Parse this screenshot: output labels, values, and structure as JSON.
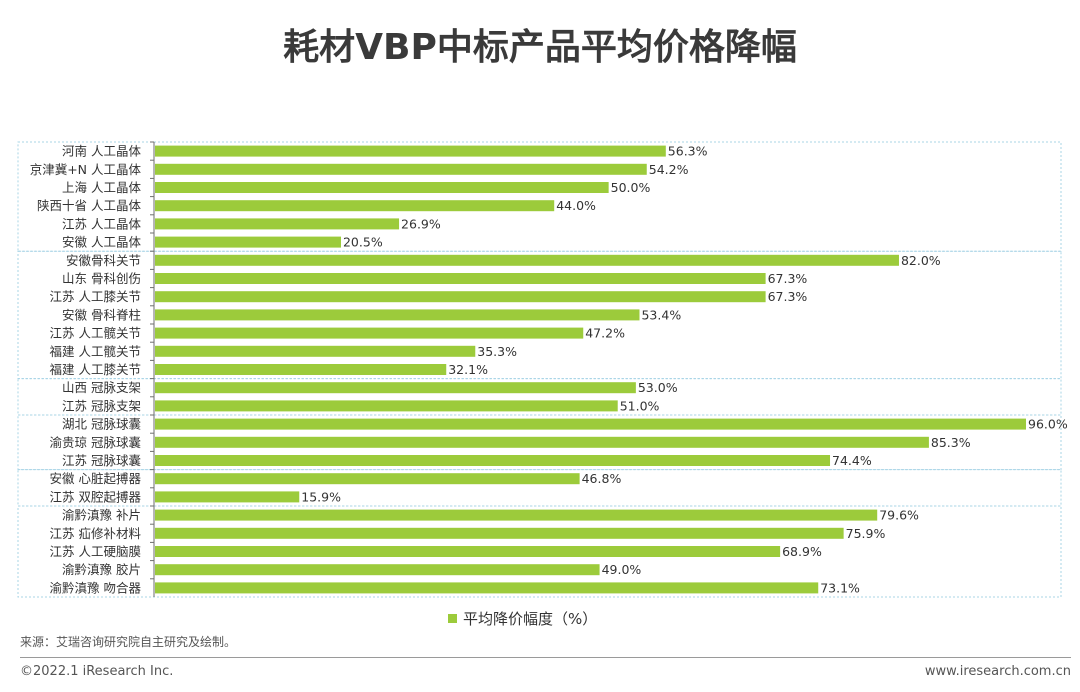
{
  "title": "耗材VBP中标产品平均价格降幅",
  "legend_label": "平均降价幅度（%）",
  "source": "来源：艾瑞咨询研究院自主研究及绘制。",
  "copyright": "©2022.1 iResearch Inc.",
  "website": "www.iresearch.com.cn",
  "colors": {
    "bar": "#9ccb3b",
    "group_border": "#a8d4e6",
    "axis": "#6e6e6e"
  },
  "chart_data": {
    "type": "bar",
    "orientation": "horizontal",
    "categories": [
      "河南 人工晶体",
      "京津冀+N 人工晶体",
      "上海 人工晶体",
      "陕西十省 人工晶体",
      "江苏 人工晶体",
      "安徽 人工晶体",
      "安徽骨科关节",
      "山东 骨科创伤",
      "江苏 人工膝关节",
      "安徽 骨科脊柱",
      "江苏 人工髋关节",
      "福建 人工髋关节",
      "福建 人工膝关节",
      "山西 冠脉支架",
      "江苏 冠脉支架",
      "湖北 冠脉球囊",
      "渝贵琼 冠脉球囊",
      "江苏 冠脉球囊",
      "安徽 心脏起搏器",
      "江苏 双腔起搏器",
      "渝黔滇豫 补片",
      "江苏 疝修补材料",
      "江苏 人工硬脑膜",
      "渝黔滇豫 胶片",
      "渝黔滇豫 吻合器"
    ],
    "values": [
      56.3,
      54.2,
      50.0,
      44.0,
      26.9,
      20.5,
      82.0,
      67.3,
      67.3,
      53.4,
      47.2,
      35.3,
      32.1,
      53.0,
      51.0,
      96.0,
      85.3,
      74.4,
      46.8,
      15.9,
      79.6,
      75.9,
      68.9,
      49.0,
      73.1
    ],
    "value_labels": [
      "56.3%",
      "54.2%",
      "50.0%",
      "44.0%",
      "26.9%",
      "20.5%",
      "82.0%",
      "67.3%",
      "67.3%",
      "53.4%",
      "47.2%",
      "35.3%",
      "32.1%",
      "53.0%",
      "51.0%",
      "96.0%",
      "85.3%",
      "74.4%",
      "46.8%",
      "15.9%",
      "79.6%",
      "75.9%",
      "68.9%",
      "49.0%",
      "73.1%"
    ],
    "group_sizes": [
      6,
      7,
      2,
      3,
      2,
      5
    ],
    "series": [
      {
        "name": "平均降价幅度（%）"
      }
    ],
    "xlim": [
      0,
      96
    ],
    "grid": false,
    "legend": "bottom"
  }
}
